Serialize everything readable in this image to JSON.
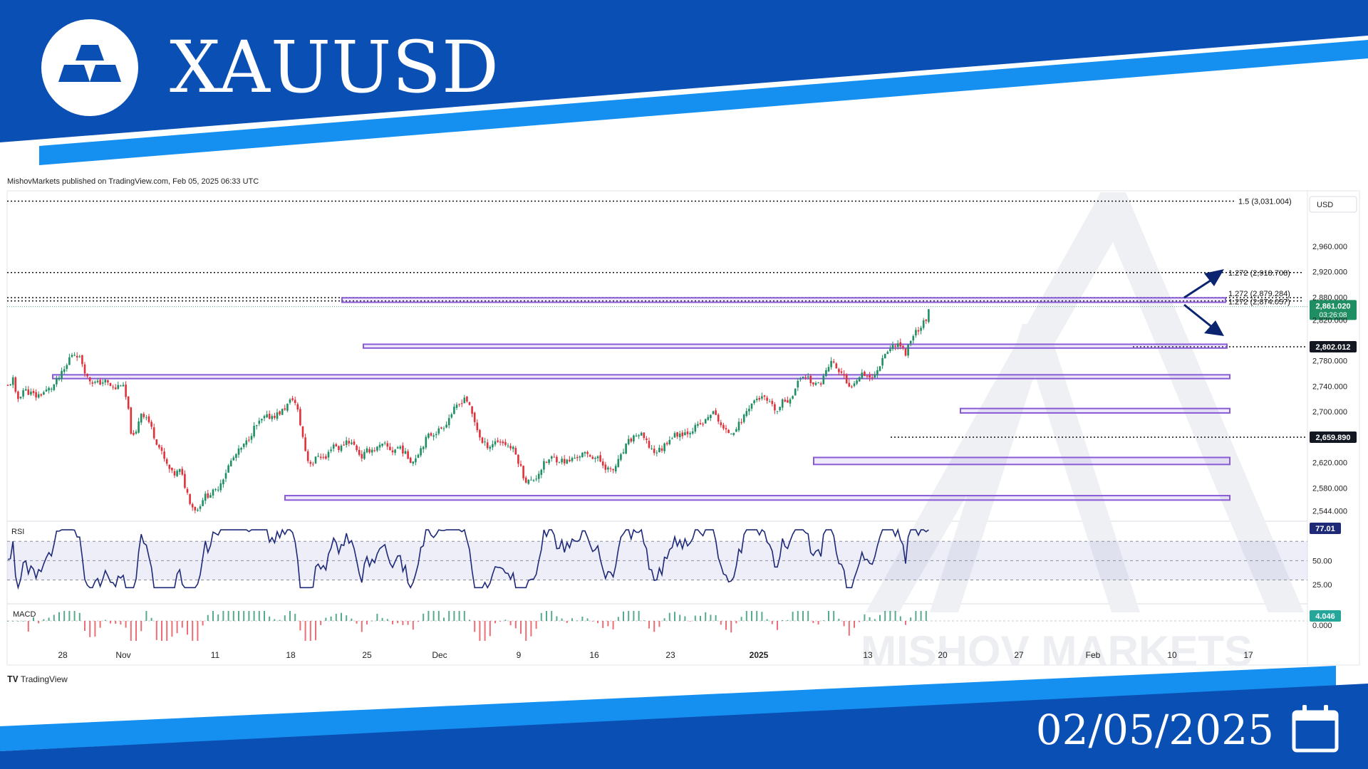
{
  "header": {
    "symbol": "XAUUSD"
  },
  "footer": {
    "date": "02/05/2025",
    "brand": "TradingView"
  },
  "published": "MishovMarkets published on TradingView.com, Feb 05, 2025 06:33 UTC",
  "watermark": "MISHOV MARKETS",
  "colors": {
    "brand_blue": "#0a4fb3",
    "accent_blue": "#1590f0",
    "candle_up": "#1f8f63",
    "candle_down": "#e0303a",
    "zone": "#8a5bd6",
    "rsi_line": "#1e2a78"
  },
  "chart_data": {
    "type": "candlestick",
    "currency": "USD",
    "x_ticks": [
      "28",
      "Nov",
      "11",
      "18",
      "25",
      "Dec",
      "9",
      "16",
      "23",
      "2025",
      "13",
      "20",
      "27",
      "Feb",
      "10",
      "17"
    ],
    "y_ticks": [
      "2,960.000",
      "2,920.000",
      "2,880.000",
      "2,820.000",
      "2,780.000",
      "2,740.000",
      "2,700.000",
      "2,620.000",
      "2,580.000",
      "2,544.000"
    ],
    "ylim": [
      2530,
      3045
    ],
    "price_path": [
      [
        0,
        2740
      ],
      [
        8,
        2752
      ],
      [
        12,
        2716
      ],
      [
        22,
        2735
      ],
      [
        40,
        2724
      ],
      [
        62,
        2738
      ],
      [
        70,
        2750
      ],
      [
        82,
        2770
      ],
      [
        88,
        2790
      ],
      [
        96,
        2792
      ],
      [
        104,
        2778
      ],
      [
        112,
        2752
      ],
      [
        124,
        2744
      ],
      [
        136,
        2748
      ],
      [
        150,
        2735
      ],
      [
        160,
        2746
      ],
      [
        168,
        2712
      ],
      [
        172,
        2672
      ],
      [
        178,
        2655
      ],
      [
        186,
        2700
      ],
      [
        196,
        2690
      ],
      [
        206,
        2660
      ],
      [
        214,
        2640
      ],
      [
        222,
        2618
      ],
      [
        232,
        2600
      ],
      [
        242,
        2608
      ],
      [
        250,
        2578
      ],
      [
        258,
        2552
      ],
      [
        266,
        2545
      ],
      [
        274,
        2565
      ],
      [
        282,
        2570
      ],
      [
        292,
        2575
      ],
      [
        302,
        2596
      ],
      [
        312,
        2620
      ],
      [
        322,
        2635
      ],
      [
        334,
        2650
      ],
      [
        346,
        2675
      ],
      [
        360,
        2690
      ],
      [
        376,
        2695
      ],
      [
        384,
        2700
      ],
      [
        392,
        2710
      ],
      [
        400,
        2722
      ],
      [
        406,
        2705
      ],
      [
        414,
        2660
      ],
      [
        420,
        2625
      ],
      [
        428,
        2618
      ],
      [
        436,
        2633
      ],
      [
        446,
        2625
      ],
      [
        456,
        2650
      ],
      [
        466,
        2641
      ],
      [
        476,
        2656
      ],
      [
        488,
        2645
      ],
      [
        496,
        2628
      ],
      [
        506,
        2640
      ],
      [
        516,
        2641
      ],
      [
        528,
        2648
      ],
      [
        540,
        2638
      ],
      [
        550,
        2646
      ],
      [
        560,
        2630
      ],
      [
        568,
        2621
      ],
      [
        578,
        2640
      ],
      [
        590,
        2662
      ],
      [
        604,
        2670
      ],
      [
        614,
        2680
      ],
      [
        624,
        2700
      ],
      [
        634,
        2712
      ],
      [
        642,
        2725
      ],
      [
        650,
        2700
      ],
      [
        658,
        2675
      ],
      [
        666,
        2650
      ],
      [
        676,
        2646
      ],
      [
        686,
        2655
      ],
      [
        698,
        2650
      ],
      [
        710,
        2640
      ],
      [
        718,
        2618
      ],
      [
        726,
        2592
      ],
      [
        734,
        2590
      ],
      [
        742,
        2598
      ],
      [
        752,
        2617
      ],
      [
        764,
        2628
      ],
      [
        774,
        2624
      ],
      [
        786,
        2621
      ],
      [
        796,
        2628
      ],
      [
        806,
        2633
      ],
      [
        818,
        2631
      ],
      [
        828,
        2626
      ],
      [
        838,
        2614
      ],
      [
        848,
        2605
      ],
      [
        860,
        2628
      ],
      [
        870,
        2651
      ],
      [
        882,
        2664
      ],
      [
        890,
        2662
      ],
      [
        898,
        2648
      ],
      [
        908,
        2636
      ],
      [
        918,
        2642
      ],
      [
        928,
        2658
      ],
      [
        940,
        2665
      ],
      [
        954,
        2668
      ],
      [
        966,
        2676
      ],
      [
        978,
        2683
      ],
      [
        988,
        2700
      ],
      [
        996,
        2690
      ],
      [
        1006,
        2668
      ],
      [
        1016,
        2668
      ],
      [
        1028,
        2682
      ],
      [
        1040,
        2708
      ],
      [
        1052,
        2722
      ],
      [
        1062,
        2720
      ],
      [
        1072,
        2708
      ],
      [
        1080,
        2700
      ],
      [
        1088,
        2716
      ],
      [
        1096,
        2718
      ],
      [
        1104,
        2733
      ],
      [
        1114,
        2758
      ],
      [
        1124,
        2753
      ],
      [
        1132,
        2740
      ],
      [
        1140,
        2745
      ],
      [
        1148,
        2762
      ],
      [
        1156,
        2780
      ],
      [
        1164,
        2766
      ],
      [
        1172,
        2758
      ],
      [
        1180,
        2735
      ],
      [
        1188,
        2748
      ],
      [
        1198,
        2762
      ],
      [
        1206,
        2758
      ],
      [
        1214,
        2752
      ],
      [
        1222,
        2770
      ],
      [
        1230,
        2792
      ],
      [
        1238,
        2798
      ],
      [
        1246,
        2808
      ],
      [
        1254,
        2804
      ],
      [
        1260,
        2790
      ],
      [
        1266,
        2812
      ],
      [
        1274,
        2826
      ],
      [
        1282,
        2834
      ],
      [
        1288,
        2845
      ],
      [
        1294,
        2861
      ]
    ],
    "levels": [
      {
        "label": "1.5 (3,031.004)",
        "value": 3031.004
      },
      {
        "label": "1.272 (2,918.708)",
        "value": 2918.708
      },
      {
        "label": "1.272 (2,879.284)",
        "value": 2879.284
      },
      {
        "label": "1.272 (2,874.057)",
        "value": 2874.057
      },
      {
        "label": "2,802.012",
        "value": 2802.012
      },
      {
        "label": "2,659.890",
        "value": 2659.89
      }
    ],
    "zones": [
      {
        "low": 2872,
        "high": 2879
      },
      {
        "low": 2800,
        "high": 2806
      },
      {
        "low": 2752,
        "high": 2758
      },
      {
        "low": 2698,
        "high": 2705
      },
      {
        "low": 2617,
        "high": 2628
      },
      {
        "low": 2561,
        "high": 2568
      }
    ],
    "current_price": {
      "value": 2861.02,
      "label": "2,861.020",
      "countdown": "03:26:08"
    },
    "rsi": {
      "label": "RSI",
      "value_label": "77.01",
      "ticks": [
        "50.00",
        "25.00"
      ],
      "upper": 70,
      "lower": 30,
      "middle": 50
    },
    "macd": {
      "label": "MACD",
      "value_label": "4.046",
      "zero_label": "0.000"
    }
  }
}
